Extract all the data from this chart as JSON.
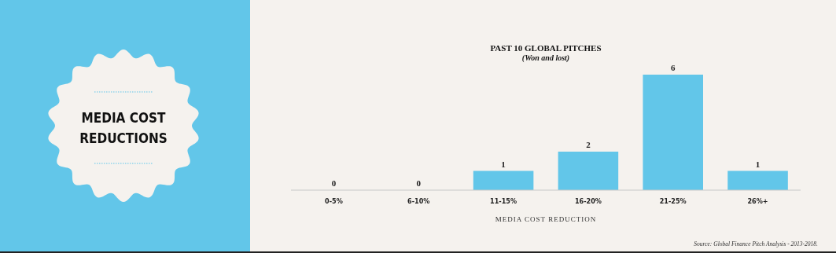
{
  "chart_data": {
    "type": "bar",
    "title": "PAST 10 GLOBAL PITCHES",
    "subtitle": "(Won and lost)",
    "xlabel": "MEDIA COST REDUCTION",
    "categories": [
      "0-5%",
      "6-10%",
      "11-15%",
      "16-20%",
      "21-25%",
      "26%+"
    ],
    "values": [
      0,
      0,
      1,
      2,
      6,
      1
    ],
    "color": "#62c6e9",
    "data_labels": true,
    "annotations": [
      "MEDIA COST REDUCTIONS",
      "Source: Global Finance Pitch Analysis - 2013-2018."
    ]
  }
}
